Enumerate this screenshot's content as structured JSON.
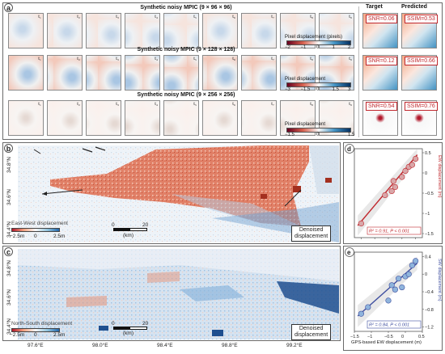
{
  "panel_a": {
    "letter": "a",
    "col_target": "Target",
    "col_predicted": "Predicted",
    "rows": [
      {
        "title": "Synthetic noisy MPIC (9 × 96 × 96)",
        "tiles": [
          "t₁",
          "t₂",
          "t₃",
          "t₄",
          "t₅",
          "t₆",
          "t₇",
          "t₈",
          "t₉"
        ],
        "cbar_label": "Pixel displacement (pixels)",
        "cbar_ticks": [
          "−2",
          "−1",
          "0",
          "1",
          "2"
        ],
        "snr": "SNR=0.06",
        "ssim": "SSIM=0.53"
      },
      {
        "title": "Synthetic noisy MPIC (9 × 128 × 128)",
        "tiles": [
          "t₁",
          "t₂",
          "t₃",
          "t₄",
          "t₅",
          "t₆",
          "t₇",
          "t₈",
          "t₉"
        ],
        "cbar_label": "Pixel displacement",
        "cbar_ticks": [
          "−3",
          "−1.5",
          "0",
          "1.5",
          "3"
        ],
        "snr": "SNR=0.12",
        "ssim": "SSIM=0.66"
      },
      {
        "title": "Synthetic noisy MPIC (9 × 256 × 256)",
        "tiles": [
          "t₁",
          "t₂",
          "t₃",
          "t₄",
          "t₅",
          "t₆",
          "t₇",
          "t₈",
          "t₉"
        ],
        "cbar_label": "Pixel displacement",
        "cbar_ticks": [
          "−1.5",
          "0",
          "1.5"
        ],
        "snr": "SNR=0.54",
        "ssim": "SSIM=0.76"
      }
    ]
  },
  "panel_b": {
    "letter": "b",
    "lat_labels": [
      "34.8°N",
      "34.6°N",
      "34.4°N"
    ],
    "legend_title": "East-West displacement",
    "legend_ticks": [
      "−2.5m",
      "0",
      "2.5m"
    ],
    "scale_ticks": [
      "0",
      "20"
    ],
    "scale_unit": "(km)",
    "badge_line1": "Denoised",
    "badge_line2": "displacement"
  },
  "panel_c": {
    "letter": "c",
    "lat_labels": [
      "34.8°N",
      "34.6°N",
      "34.4°N"
    ],
    "legend_title": "North-South displacement",
    "legend_ticks": [
      "−2.5m",
      "0",
      "2.5m"
    ],
    "scale_ticks": [
      "0",
      "20"
    ],
    "scale_unit": "(km)",
    "badge_line1": "Denoised",
    "badge_line2": "displacement",
    "lon_labels": [
      "97.6°E",
      "98.0°E",
      "98.4°E",
      "98.8°E",
      "99.2°E"
    ]
  },
  "chart_data": [
    {
      "type": "scatter",
      "panel": "d",
      "ylabel": "EW displacement (m)",
      "yticks": [
        "0.5",
        "0",
        "−0.5",
        "−1",
        "−1.5"
      ],
      "ylim": [
        -1.6,
        0.6
      ],
      "xlim": [
        -1.5,
        0.5
      ],
      "x": [
        -1.3,
        -0.6,
        -0.4,
        -0.35,
        -0.3,
        -0.1,
        0.0,
        0.1,
        0.2,
        0.3
      ],
      "y": [
        -1.25,
        -0.55,
        -0.45,
        -0.2,
        -0.35,
        -0.1,
        0.05,
        0.15,
        0.2,
        0.35
      ],
      "fit": [
        [
          -1.4,
          -1.3
        ],
        [
          0.35,
          0.45
        ]
      ],
      "stat": "R² = 0.91,  P < 0.001",
      "color": "#c0272d",
      "point_color": "#d9a7a9"
    },
    {
      "type": "scatter",
      "panel": "e",
      "ylabel": "SW displacement (m)",
      "xlabel": "GPS-based EW displacement (m)",
      "yticks": [
        "0.4",
        "0",
        "−0.4",
        "−0.8",
        "−1.2"
      ],
      "xticks": [
        "−1.5",
        "−1",
        "−0.5",
        "0",
        "0.5"
      ],
      "ylim": [
        -1.3,
        0.5
      ],
      "xlim": [
        -1.5,
        0.5
      ],
      "x": [
        -1.3,
        -1.1,
        -0.5,
        -0.4,
        -0.3,
        -0.2,
        -0.1,
        0.0,
        0.1,
        0.2,
        0.3
      ],
      "y": [
        -0.9,
        -0.75,
        -0.6,
        -0.25,
        -0.35,
        -0.1,
        -0.3,
        -0.05,
        0.0,
        0.2,
        0.3
      ],
      "fit": [
        [
          -1.4,
          -0.95
        ],
        [
          0.35,
          0.25
        ]
      ],
      "stat": "R² = 0.84,  P < 0.001",
      "color": "#3f4fa0",
      "point_color": "#8fb4dc"
    }
  ],
  "colors": {
    "red": "#c0272d",
    "blue": "#2f64a8",
    "neutral": "#f4f1ee"
  }
}
